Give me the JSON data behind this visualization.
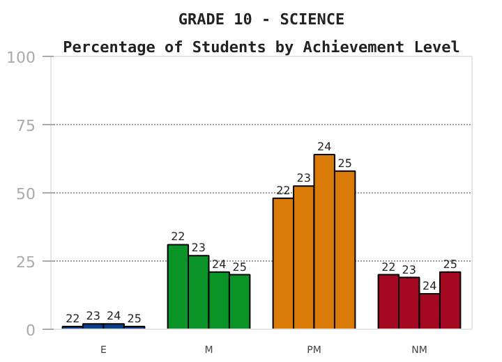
{
  "chart_data": {
    "type": "bar",
    "title": "GRADE 10 - SCIENCE",
    "subtitle": "Percentage of Students by Achievement Level",
    "categories": [
      "E",
      "M",
      "PM",
      "NM"
    ],
    "series": [
      {
        "name": "22",
        "colors": [
          "#0a3f8a",
          "#0a9428",
          "#d97b06",
          "#a50821"
        ],
        "values": [
          1,
          31,
          48,
          20
        ]
      },
      {
        "name": "23",
        "colors": [
          "#0a3f8a",
          "#0a9428",
          "#d97b06",
          "#a50821"
        ],
        "values": [
          2,
          27,
          52.5,
          19
        ]
      },
      {
        "name": "24",
        "colors": [
          "#0a3f8a",
          "#0a9428",
          "#d97b06",
          "#a50821"
        ],
        "values": [
          2,
          21,
          64,
          13
        ]
      },
      {
        "name": "25",
        "colors": [
          "#0a3f8a",
          "#0a9428",
          "#d97b06",
          "#a50821"
        ],
        "values": [
          1,
          20,
          58,
          21
        ]
      }
    ],
    "ylim": [
      0,
      100
    ],
    "yticks": [
      0,
      25,
      50,
      75,
      100
    ],
    "grid": "y"
  }
}
